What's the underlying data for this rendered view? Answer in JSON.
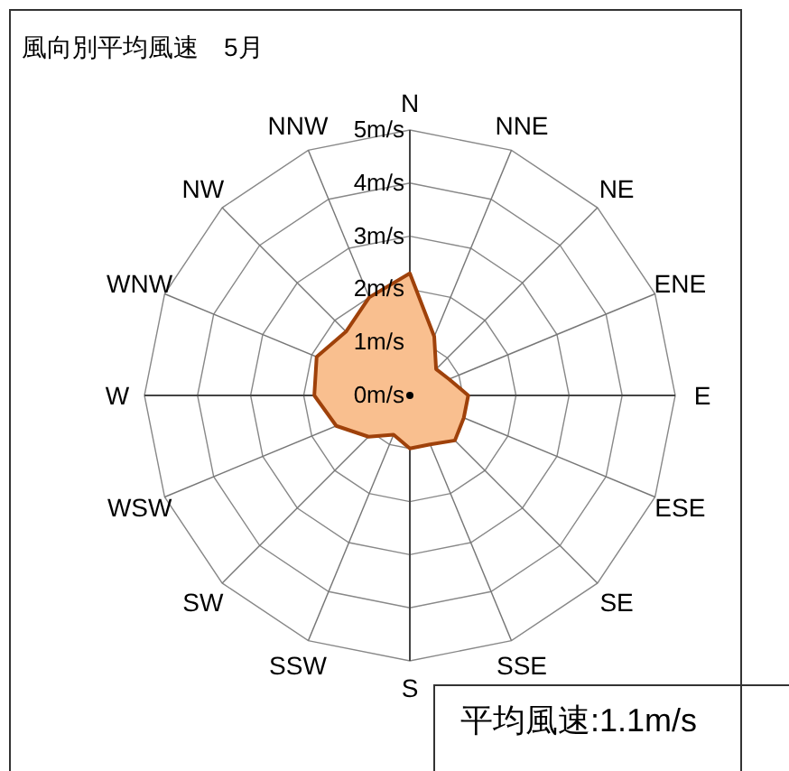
{
  "chart_data": {
    "type": "radar",
    "title": "風向別平均風速　5月",
    "categories": [
      "N",
      "NNE",
      "NE",
      "ENE",
      "E",
      "ESE",
      "SE",
      "SSE",
      "S",
      "SSW",
      "SW",
      "WSW",
      "W",
      "WNW",
      "NW",
      "NNW"
    ],
    "series": [
      {
        "color": "#f9bf8f",
        "values": [
          2.3,
          1.2,
          0.7,
          0.8,
          1.1,
          1.1,
          1.2,
          1.0,
          1.0,
          0.8,
          1.1,
          1.5,
          1.8,
          1.9,
          1.7,
          2.0
        ]
      }
    ],
    "ylim": [
      0,
      5
    ],
    "yticks": [
      {
        "value": 0,
        "label": "0m/s"
      },
      {
        "value": 1,
        "label": "1m/s"
      },
      {
        "value": 2,
        "label": "2m/s"
      },
      {
        "value": 3,
        "label": "3m/s"
      },
      {
        "value": 4,
        "label": "4m/s"
      },
      {
        "value": 5,
        "label": "5m/s"
      }
    ],
    "grid": true,
    "annotations": [
      "平均風速:1.1m/s"
    ]
  }
}
